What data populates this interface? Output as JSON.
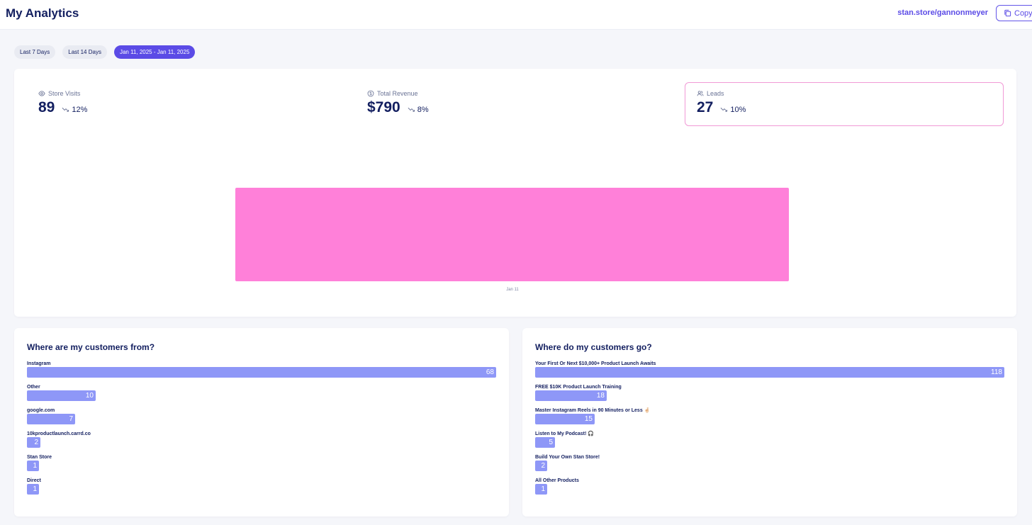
{
  "header": {
    "title": "My Analytics",
    "store_link": "stan.store/gannonmeyer",
    "copy_label": "Copy"
  },
  "filters": [
    {
      "label": "Last 7 Days",
      "active": false
    },
    {
      "label": "Last 14 Days",
      "active": false
    },
    {
      "label": "Jan 11, 2025 - Jan 11, 2025",
      "active": true
    }
  ],
  "metrics": [
    {
      "label": "Store Visits",
      "value": "89",
      "delta": "12%",
      "icon": "eye-icon"
    },
    {
      "label": "Total Revenue",
      "value": "$790",
      "delta": "8%",
      "icon": "dollar-icon"
    },
    {
      "label": "Leads",
      "value": "27",
      "delta": "10%",
      "icon": "users-icon"
    }
  ],
  "chart_data": {
    "type": "bar",
    "categories": [
      "Jan 11"
    ],
    "values": [
      27
    ],
    "color": "#ff80d9"
  },
  "sources": {
    "title": "Where are my customers from?",
    "items": [
      {
        "label": "Instagram",
        "value": 68
      },
      {
        "label": "Other",
        "value": 10
      },
      {
        "label": "google.com",
        "value": 7
      },
      {
        "label": "10kproductlaunch.carrd.co",
        "value": 2
      },
      {
        "label": "Stan Store",
        "value": 1
      },
      {
        "label": "Direct",
        "value": 1
      }
    ]
  },
  "destinations": {
    "title": "Where do my customers go?",
    "items": [
      {
        "label": "Your First Or Next $10,000+ Product Launch Awaits",
        "value": 118
      },
      {
        "label": "FREE $10K Product Launch Training",
        "value": 18
      },
      {
        "label": "Master Instagram Reels in 90 Minutes or Less 🤞🏻",
        "value": 15
      },
      {
        "label": "Listen to My Podcast! 🎧",
        "value": 5
      },
      {
        "label": "Build Your Own Stan Store!",
        "value": 2
      },
      {
        "label": "All Other Products",
        "value": 1
      }
    ]
  },
  "colors": {
    "accent": "#5b4be6",
    "bar": "#8e97f7",
    "chart": "#ff80d9",
    "selected_border": "#f19ad6",
    "text": "#131f60"
  }
}
